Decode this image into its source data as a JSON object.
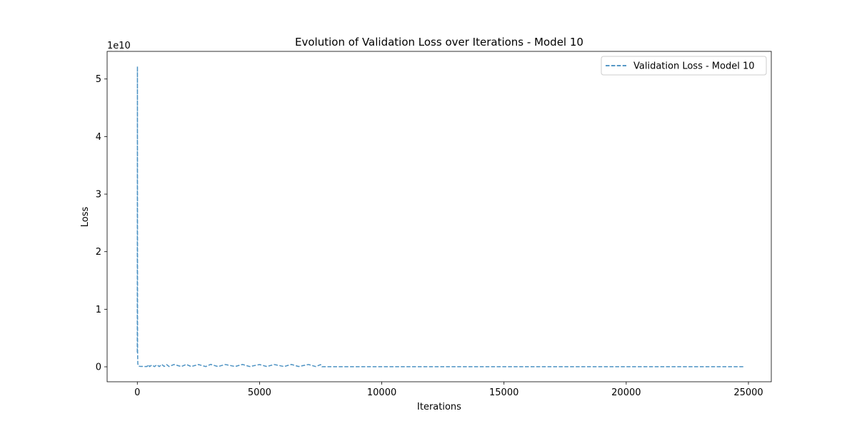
{
  "chart_data": {
    "type": "line",
    "title": "Evolution of Validation Loss over Iterations - Model 10",
    "xlabel": "Iterations",
    "ylabel": "Loss",
    "y_offset_label": "1e10",
    "xlim": [
      -1235,
      25935
    ],
    "ylim": [
      -2600000000,
      54800000000
    ],
    "x_ticks": [
      0,
      5000,
      10000,
      15000,
      20000,
      25000
    ],
    "x_tick_labels": [
      "0",
      "5000",
      "10000",
      "15000",
      "20000",
      "25000"
    ],
    "y_ticks": [
      0,
      10000000000,
      20000000000,
      30000000000,
      40000000000,
      50000000000
    ],
    "y_tick_labels": [
      "0",
      "1",
      "2",
      "3",
      "4",
      "5"
    ],
    "grid": false,
    "legend_position": "upper right",
    "series": [
      {
        "name": "Validation Loss - Model 10",
        "color": "#1f77b4",
        "line_style": "dashed",
        "x": [
          0,
          5,
          10,
          20,
          30,
          40,
          60,
          80,
          100,
          150,
          200,
          300,
          400,
          450,
          500,
          600,
          700,
          800,
          900,
          1000,
          1100,
          1200,
          1300,
          1500,
          1800,
          2000,
          2200,
          2500,
          2800,
          3000,
          3300,
          3600,
          4000,
          4300,
          4600,
          5000,
          5300,
          5600,
          6000,
          6300,
          6600,
          7000,
          7300,
          7500,
          7550,
          8000,
          10000,
          12000,
          15000,
          18000,
          20000,
          22000,
          24000,
          24800
        ],
        "values": [
          2500000000,
          52200000000,
          2800000000,
          600000000,
          350000000,
          180000000,
          120000000,
          90000000,
          80000000,
          70000000,
          60000000,
          50000000,
          55000000,
          380000000,
          40000000,
          310000000,
          40000000,
          350000000,
          40000000,
          420000000,
          60000000,
          380000000,
          50000000,
          400000000,
          45000000,
          410000000,
          50000000,
          390000000,
          40000000,
          420000000,
          45000000,
          400000000,
          50000000,
          410000000,
          45000000,
          390000000,
          50000000,
          400000000,
          45000000,
          410000000,
          50000000,
          400000000,
          45000000,
          380000000,
          20000000,
          20000000,
          20000000,
          20000000,
          20000000,
          20000000,
          20000000,
          20000000,
          20000000,
          20000000
        ]
      }
    ]
  }
}
